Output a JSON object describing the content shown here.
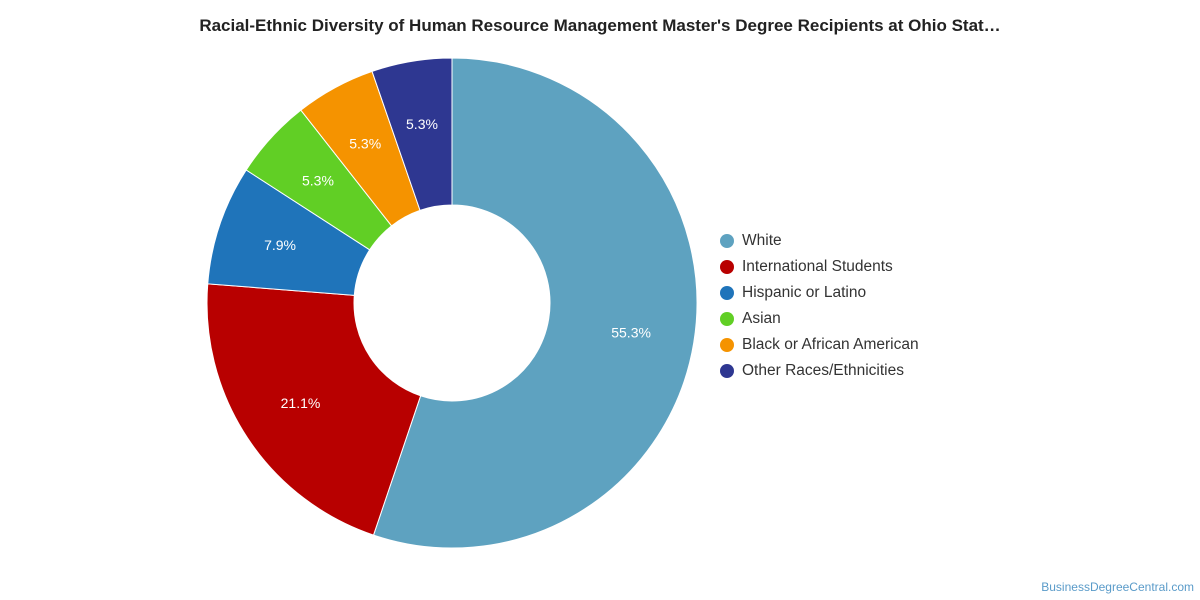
{
  "chart_data": {
    "type": "pie",
    "title": "Racial-Ethnic Diversity of Human Resource Management Master's Degree Recipients at Ohio Stat…",
    "categories": [
      "White",
      "International Students",
      "Hispanic or Latino",
      "Asian",
      "Black or African American",
      "Other Races/Ethnicities"
    ],
    "values": [
      55.3,
      21.1,
      7.9,
      5.3,
      5.3,
      5.3
    ],
    "data_labels": [
      "55.3%",
      "21.1%",
      "7.9%",
      "5.3%",
      "5.3%",
      "5.3%"
    ],
    "colors": [
      "#5ea2c0",
      "#b80000",
      "#1f74ba",
      "#61cf25",
      "#f59300",
      "#2e3791"
    ],
    "donut": true,
    "legend_position": "right"
  },
  "credit": "BusinessDegreeCentral.com"
}
